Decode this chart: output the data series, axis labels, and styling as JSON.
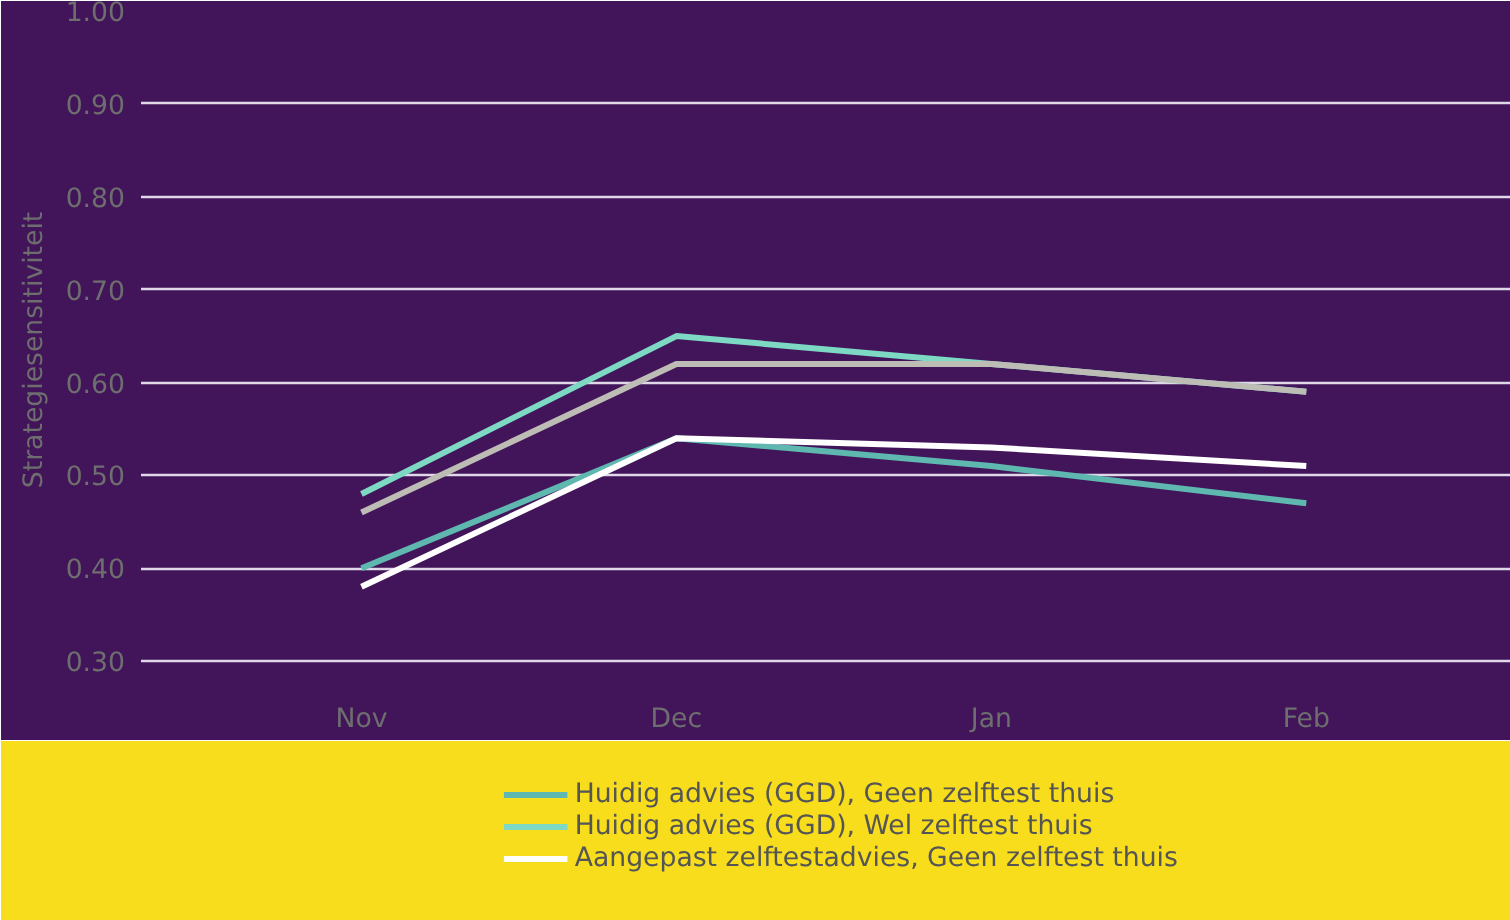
{
  "chart_data": {
    "type": "line",
    "ylabel": "Strategiesensitiviteit",
    "categories": [
      "Nov",
      "Dec",
      "Jan",
      "Feb"
    ],
    "series": [
      {
        "name": "Huidig advies (GGD), Geen zelftest thuis",
        "color": "#5fb8b0",
        "values": [
          0.4,
          0.54,
          0.51,
          0.47
        ]
      },
      {
        "name": "Huidig advies (GGD), Wel zelftest thuis",
        "color": "#7dd8c4",
        "values": [
          0.48,
          0.65,
          0.62,
          0.59
        ]
      },
      {
        "name": "Aangepast zelftestadvies, Geen zelftest thuis",
        "color": "#ffffff",
        "values": [
          0.38,
          0.54,
          0.53,
          0.51
        ]
      },
      {
        "color": "#bdbdb5",
        "values": [
          0.46,
          0.62,
          0.62,
          0.59
        ]
      }
    ],
    "ylim": [
      0.27,
      1.0
    ],
    "yticks": [
      {
        "value": 0.3,
        "label": "0.30"
      },
      {
        "value": 0.4,
        "label": "0.40"
      },
      {
        "value": 0.5,
        "label": "0.50"
      },
      {
        "value": 0.6,
        "label": "0.60"
      },
      {
        "value": 0.7,
        "label": "0.70"
      },
      {
        "value": 0.8,
        "label": "0.80"
      },
      {
        "value": 0.9,
        "label": "0.90"
      },
      {
        "value": 1.0,
        "label": "1.00"
      }
    ],
    "grid": "y",
    "legend": "bottom",
    "marker": "none",
    "line_style": "solid"
  }
}
